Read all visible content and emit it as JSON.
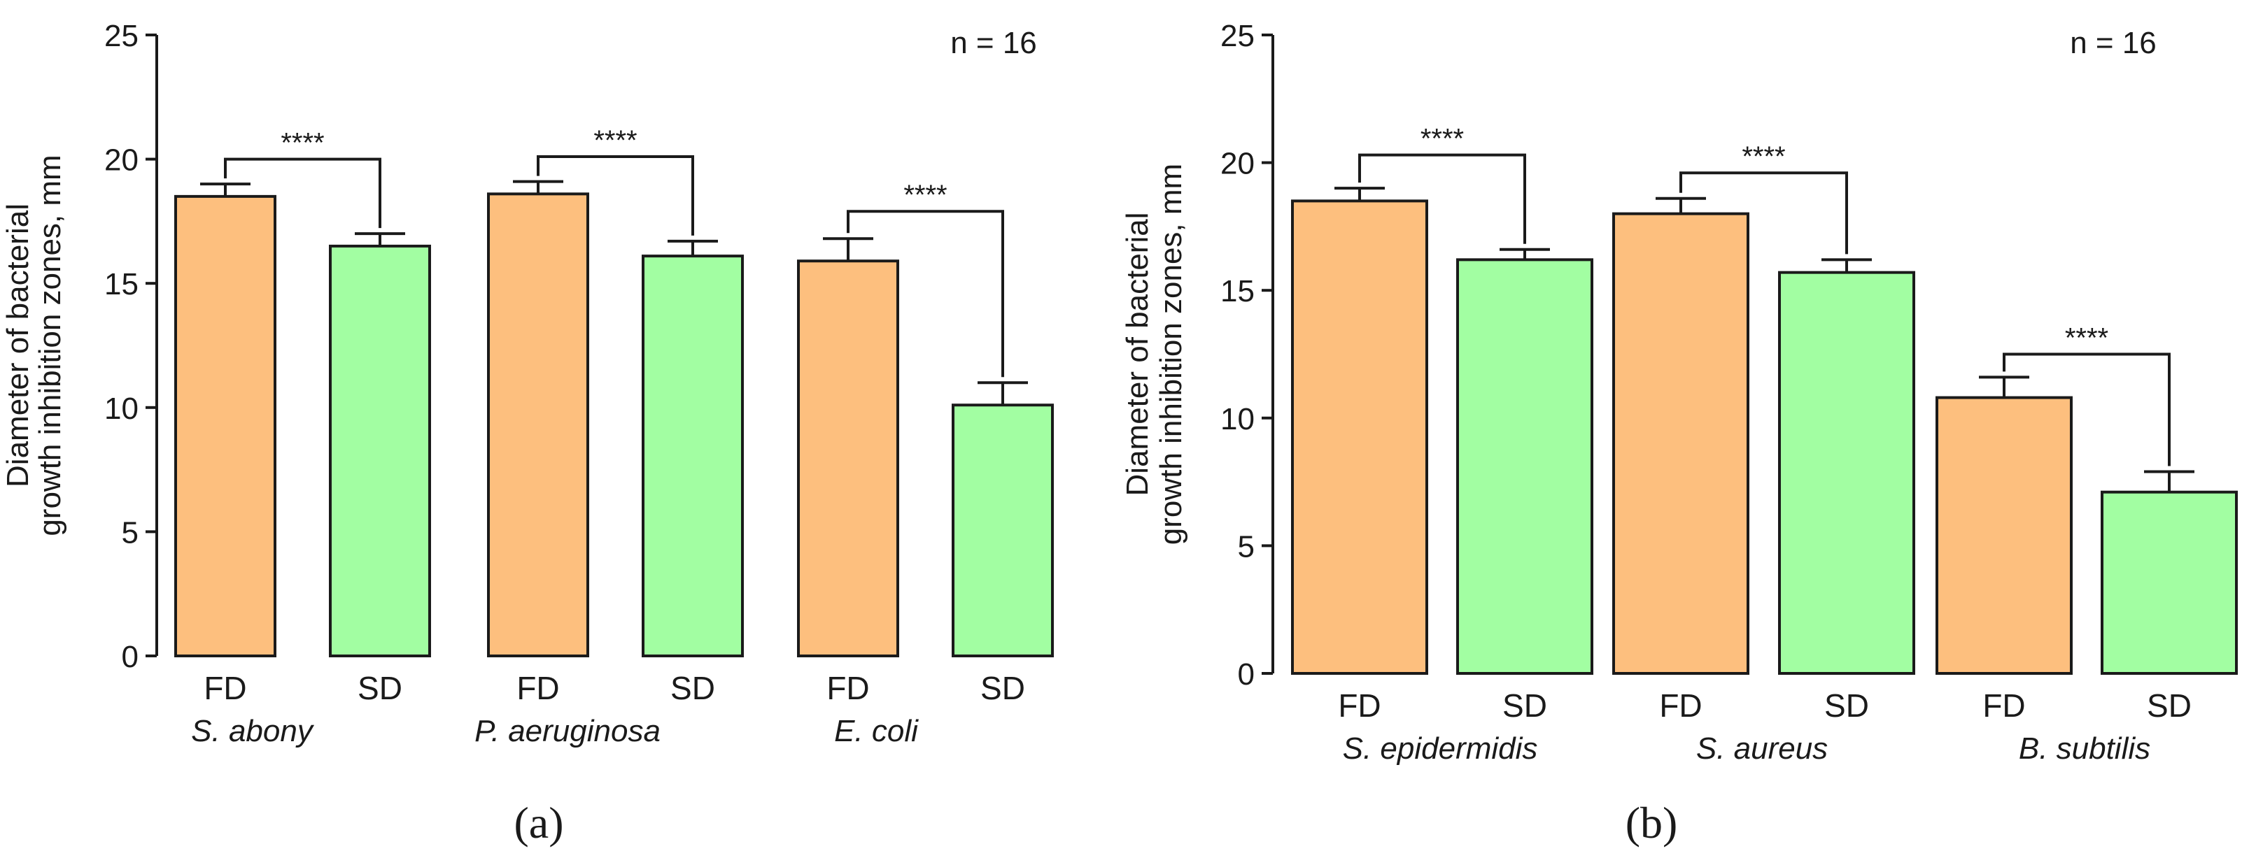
{
  "colors": {
    "FD": "#fdbf7e",
    "SD": "#a2fea2",
    "axis": "#1a1a1a"
  },
  "chart_data": [
    {
      "type": "bar",
      "panel_label": "(a)",
      "annotation": "n = 16",
      "ylabel": [
        "Diameter of bacterial",
        "growth inhibition zones, mm"
      ],
      "ylim": [
        0,
        25
      ],
      "yticks": [
        0,
        5,
        10,
        15,
        20,
        25
      ],
      "groups": [
        "S. abony",
        "P. aeruginosa",
        "E. coli"
      ],
      "bars": [
        {
          "group": 0,
          "label": "FD",
          "value": 18.5,
          "error": 0.5
        },
        {
          "group": 0,
          "label": "SD",
          "value": 16.5,
          "error": 0.5
        },
        {
          "group": 1,
          "label": "FD",
          "value": 18.6,
          "error": 0.5
        },
        {
          "group": 1,
          "label": "SD",
          "value": 16.1,
          "error": 0.6
        },
        {
          "group": 2,
          "label": "FD",
          "value": 15.9,
          "error": 0.9
        },
        {
          "group": 2,
          "label": "SD",
          "value": 10.1,
          "error": 0.9
        }
      ],
      "significance": [
        {
          "from": 0,
          "to": 1,
          "label": "****",
          "level": 20.0
        },
        {
          "from": 2,
          "to": 3,
          "label": "****",
          "level": 20.1
        },
        {
          "from": 4,
          "to": 5,
          "label": "****",
          "level": 17.9
        }
      ]
    },
    {
      "type": "bar",
      "panel_label": "(b)",
      "annotation": "n = 16",
      "ylabel": [
        "Diameter of bacterial",
        "growth inhibition zones, mm"
      ],
      "ylim": [
        0,
        25
      ],
      "yticks": [
        0,
        5,
        10,
        15,
        20,
        25
      ],
      "groups": [
        "S. epidermidis",
        "S. aureus",
        "B. subtilis"
      ],
      "bars": [
        {
          "group": 0,
          "label": "FD",
          "value": 18.5,
          "error": 0.5
        },
        {
          "group": 0,
          "label": "SD",
          "value": 16.2,
          "error": 0.4
        },
        {
          "group": 1,
          "label": "FD",
          "value": 18.0,
          "error": 0.6
        },
        {
          "group": 1,
          "label": "SD",
          "value": 15.7,
          "error": 0.5
        },
        {
          "group": 2,
          "label": "FD",
          "value": 10.8,
          "error": 0.8
        },
        {
          "group": 2,
          "label": "SD",
          "value": 7.1,
          "error": 0.8
        }
      ],
      "significance": [
        {
          "from": 0,
          "to": 1,
          "label": "****",
          "level": 20.3
        },
        {
          "from": 2,
          "to": 3,
          "label": "****",
          "level": 19.6
        },
        {
          "from": 4,
          "to": 5,
          "label": "****",
          "level": 12.5
        }
      ]
    }
  ]
}
